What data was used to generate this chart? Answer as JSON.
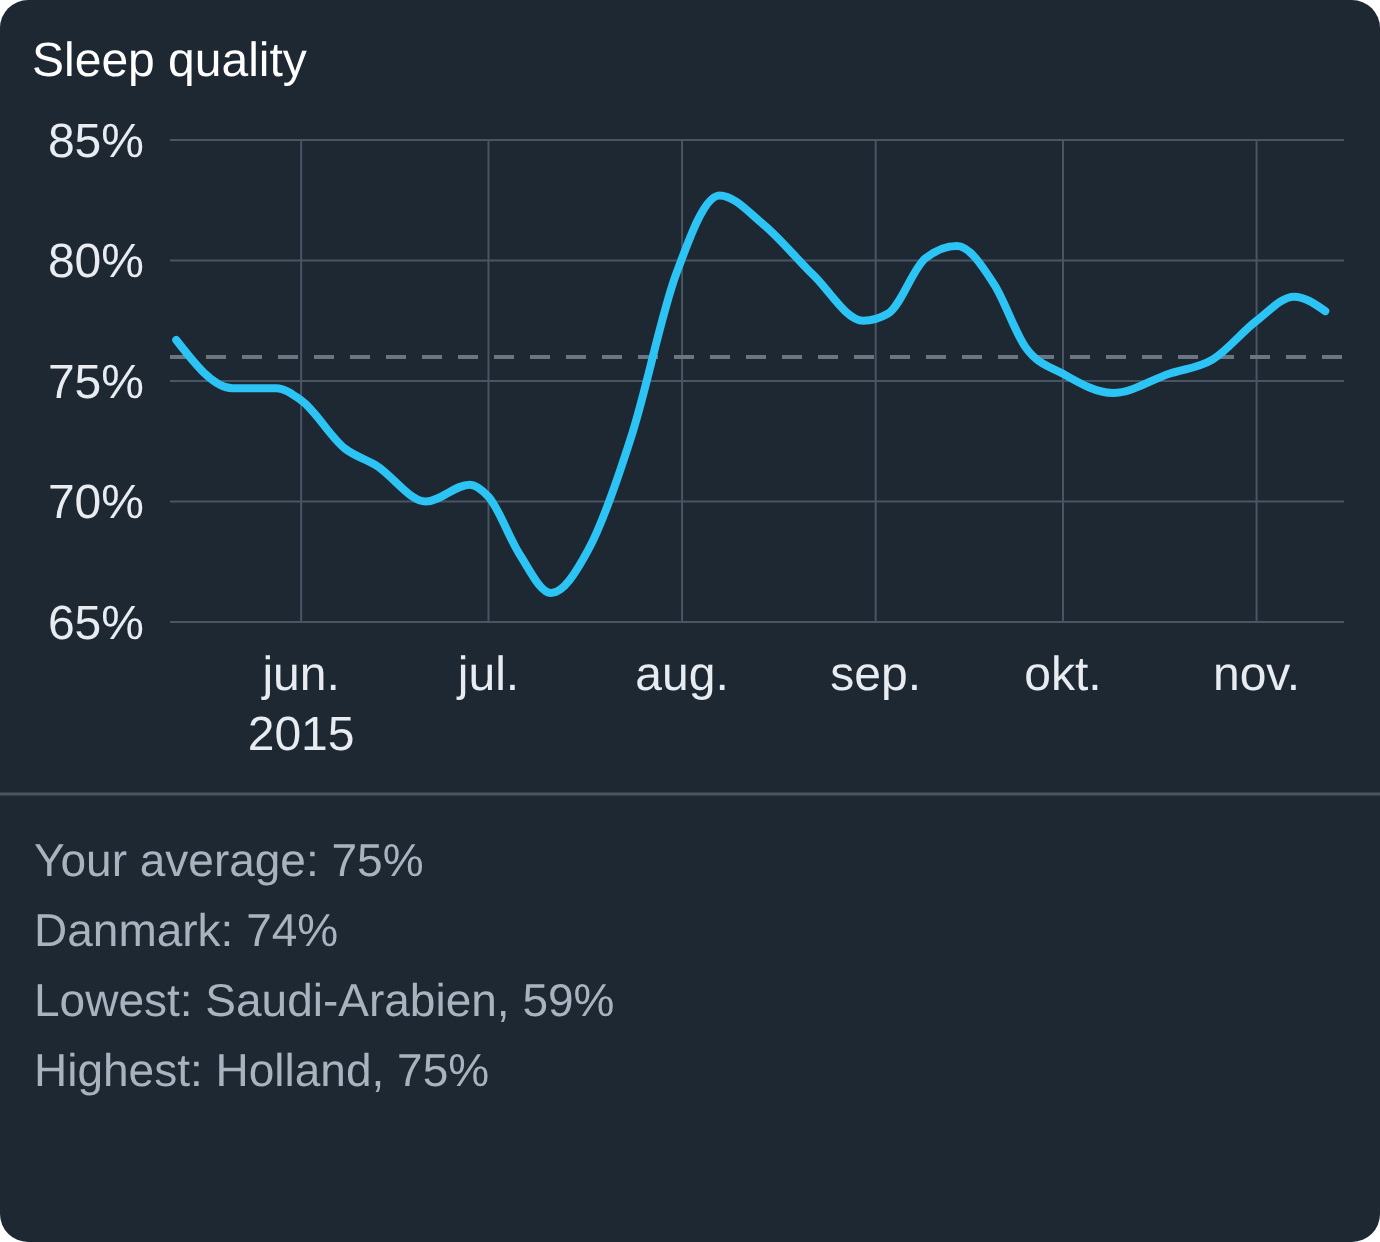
{
  "chart_data": {
    "type": "line",
    "title": "Sleep quality",
    "x": [
      "2015-05-12",
      "2015-05-21",
      "2015-05-28",
      "2015-06-01",
      "2015-06-08",
      "2015-06-13",
      "2015-06-21",
      "2015-06-28",
      "2015-07-01",
      "2015-07-06",
      "2015-07-11",
      "2015-07-17",
      "2015-07-24",
      "2015-07-31",
      "2015-08-07",
      "2015-08-14",
      "2015-08-22",
      "2015-08-30",
      "2015-09-03",
      "2015-09-09",
      "2015-09-14",
      "2015-09-20",
      "2015-09-25",
      "2015-10-01",
      "2015-10-09",
      "2015-10-18",
      "2015-10-25",
      "2015-11-01",
      "2015-11-07",
      "2015-11-12"
    ],
    "series": [
      {
        "color": "#2bc4f5",
        "values": [
          76.7,
          74.7,
          74.7,
          74.2,
          72.2,
          71.5,
          70.0,
          70.7,
          70.2,
          67.8,
          66.2,
          68.0,
          72.8,
          79.4,
          82.7,
          81.5,
          79.4,
          77.5,
          77.8,
          80.1,
          80.6,
          79.0,
          76.4,
          75.3,
          74.5,
          75.3,
          75.9,
          77.5,
          78.5,
          77.9
        ]
      }
    ],
    "xlim": [
      "2015-05-11",
      "2015-11-15"
    ],
    "xticks": [
      {
        "value": "2015-06-01",
        "label": "jun.\n2015"
      },
      {
        "value": "2015-07-01",
        "label": "jul."
      },
      {
        "value": "2015-08-01",
        "label": "aug."
      },
      {
        "value": "2015-09-01",
        "label": "sep."
      },
      {
        "value": "2015-10-01",
        "label": "okt."
      },
      {
        "value": "2015-11-01",
        "label": "nov."
      }
    ],
    "ylim": [
      65,
      85
    ],
    "yticks": [
      {
        "value": 65,
        "label": "65%"
      },
      {
        "value": 70,
        "label": "70%"
      },
      {
        "value": 75,
        "label": "75%"
      },
      {
        "value": 80,
        "label": "80%"
      },
      {
        "value": 85,
        "label": "85%"
      }
    ],
    "grid": true,
    "ref_lines": [
      {
        "axis": "y",
        "value": 76,
        "color": "#6c7683",
        "line_style": "dashed"
      }
    ],
    "annotations": [
      "Your average: 75%",
      "Danmark: 74%",
      "Lowest: Saudi-Arabien, 59%",
      "Highest: Holland, 75%"
    ]
  }
}
